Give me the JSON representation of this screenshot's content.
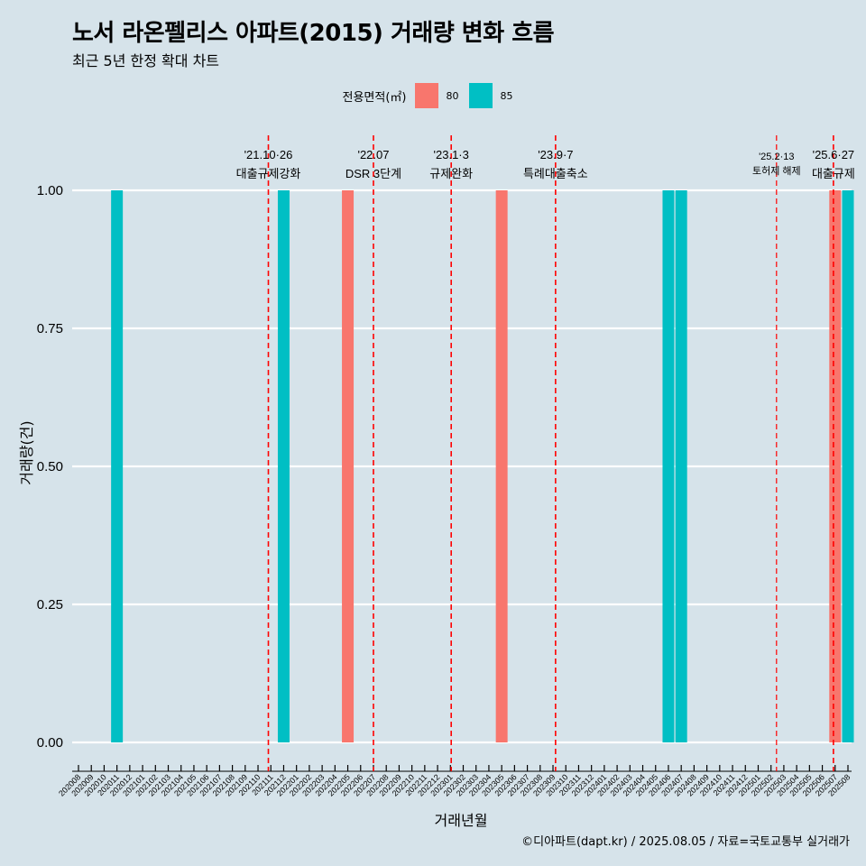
{
  "header": {
    "title": "노서 라온펠리스 아파트(2015) 거래량 변화 흐름",
    "subtitle": "최근 5년 한정 확대 차트"
  },
  "legend": {
    "title": "전용면적(㎡)",
    "items": [
      {
        "label": "80",
        "color": "#f8766d"
      },
      {
        "label": "85",
        "color": "#00bfc4"
      }
    ]
  },
  "caption": "©디아파트(dapt.kr) / 2025.08.05 / 자료=국토교통부 실거래가",
  "chart_data": {
    "type": "bar",
    "xlabel": "거래년월",
    "ylabel": "거래량(건)",
    "ylim": [
      0,
      1
    ],
    "yticks": [
      "0.00",
      "0.25",
      "0.50",
      "0.75",
      "1.00"
    ],
    "grid": true,
    "legend_position": "top",
    "categories": [
      "202008",
      "202009",
      "202010",
      "202011",
      "202012",
      "202101",
      "202102",
      "202103",
      "202104",
      "202105",
      "202106",
      "202107",
      "202108",
      "202109",
      "202110",
      "202111",
      "202112",
      "202201",
      "202202",
      "202203",
      "202204",
      "202205",
      "202206",
      "202207",
      "202208",
      "202209",
      "202210",
      "202211",
      "202212",
      "202301",
      "202302",
      "202303",
      "202304",
      "202305",
      "202306",
      "202307",
      "202308",
      "202309",
      "202310",
      "202311",
      "202312",
      "202401",
      "202402",
      "202403",
      "202404",
      "202405",
      "202406",
      "202407",
      "202408",
      "202409",
      "202410",
      "202411",
      "202412",
      "202501",
      "202502",
      "202503",
      "202504",
      "202505",
      "202506",
      "202507",
      "202508"
    ],
    "series": [
      {
        "name": "80",
        "color": "#f8766d",
        "points": [
          [
            "202205",
            1
          ],
          [
            "202305",
            1
          ],
          [
            "202507",
            1
          ]
        ]
      },
      {
        "name": "85",
        "color": "#00bfc4",
        "points": [
          [
            "202011",
            1
          ],
          [
            "202112",
            1
          ],
          [
            "202406",
            1
          ],
          [
            "202407",
            1
          ],
          [
            "202508",
            1
          ]
        ]
      }
    ],
    "annotations": [
      {
        "date": "2021-10-26",
        "line1": "'21.10·26",
        "line2": "대출규제강화"
      },
      {
        "date": "2022-07-01",
        "line1": "'22.07",
        "line2": "DSR 3단계"
      },
      {
        "date": "2023-01-03",
        "line1": "'23.1·3",
        "line2": "규제완화"
      },
      {
        "date": "2023-09-07",
        "line1": "'23.9·7",
        "line2": "특례대출축소"
      },
      {
        "date": "2025-02-13",
        "line1": "'25.2·13",
        "line2": "토허제 해제"
      },
      {
        "date": "2025-06-27",
        "line1": "'25.6·27",
        "line2": "대출규제"
      }
    ]
  }
}
